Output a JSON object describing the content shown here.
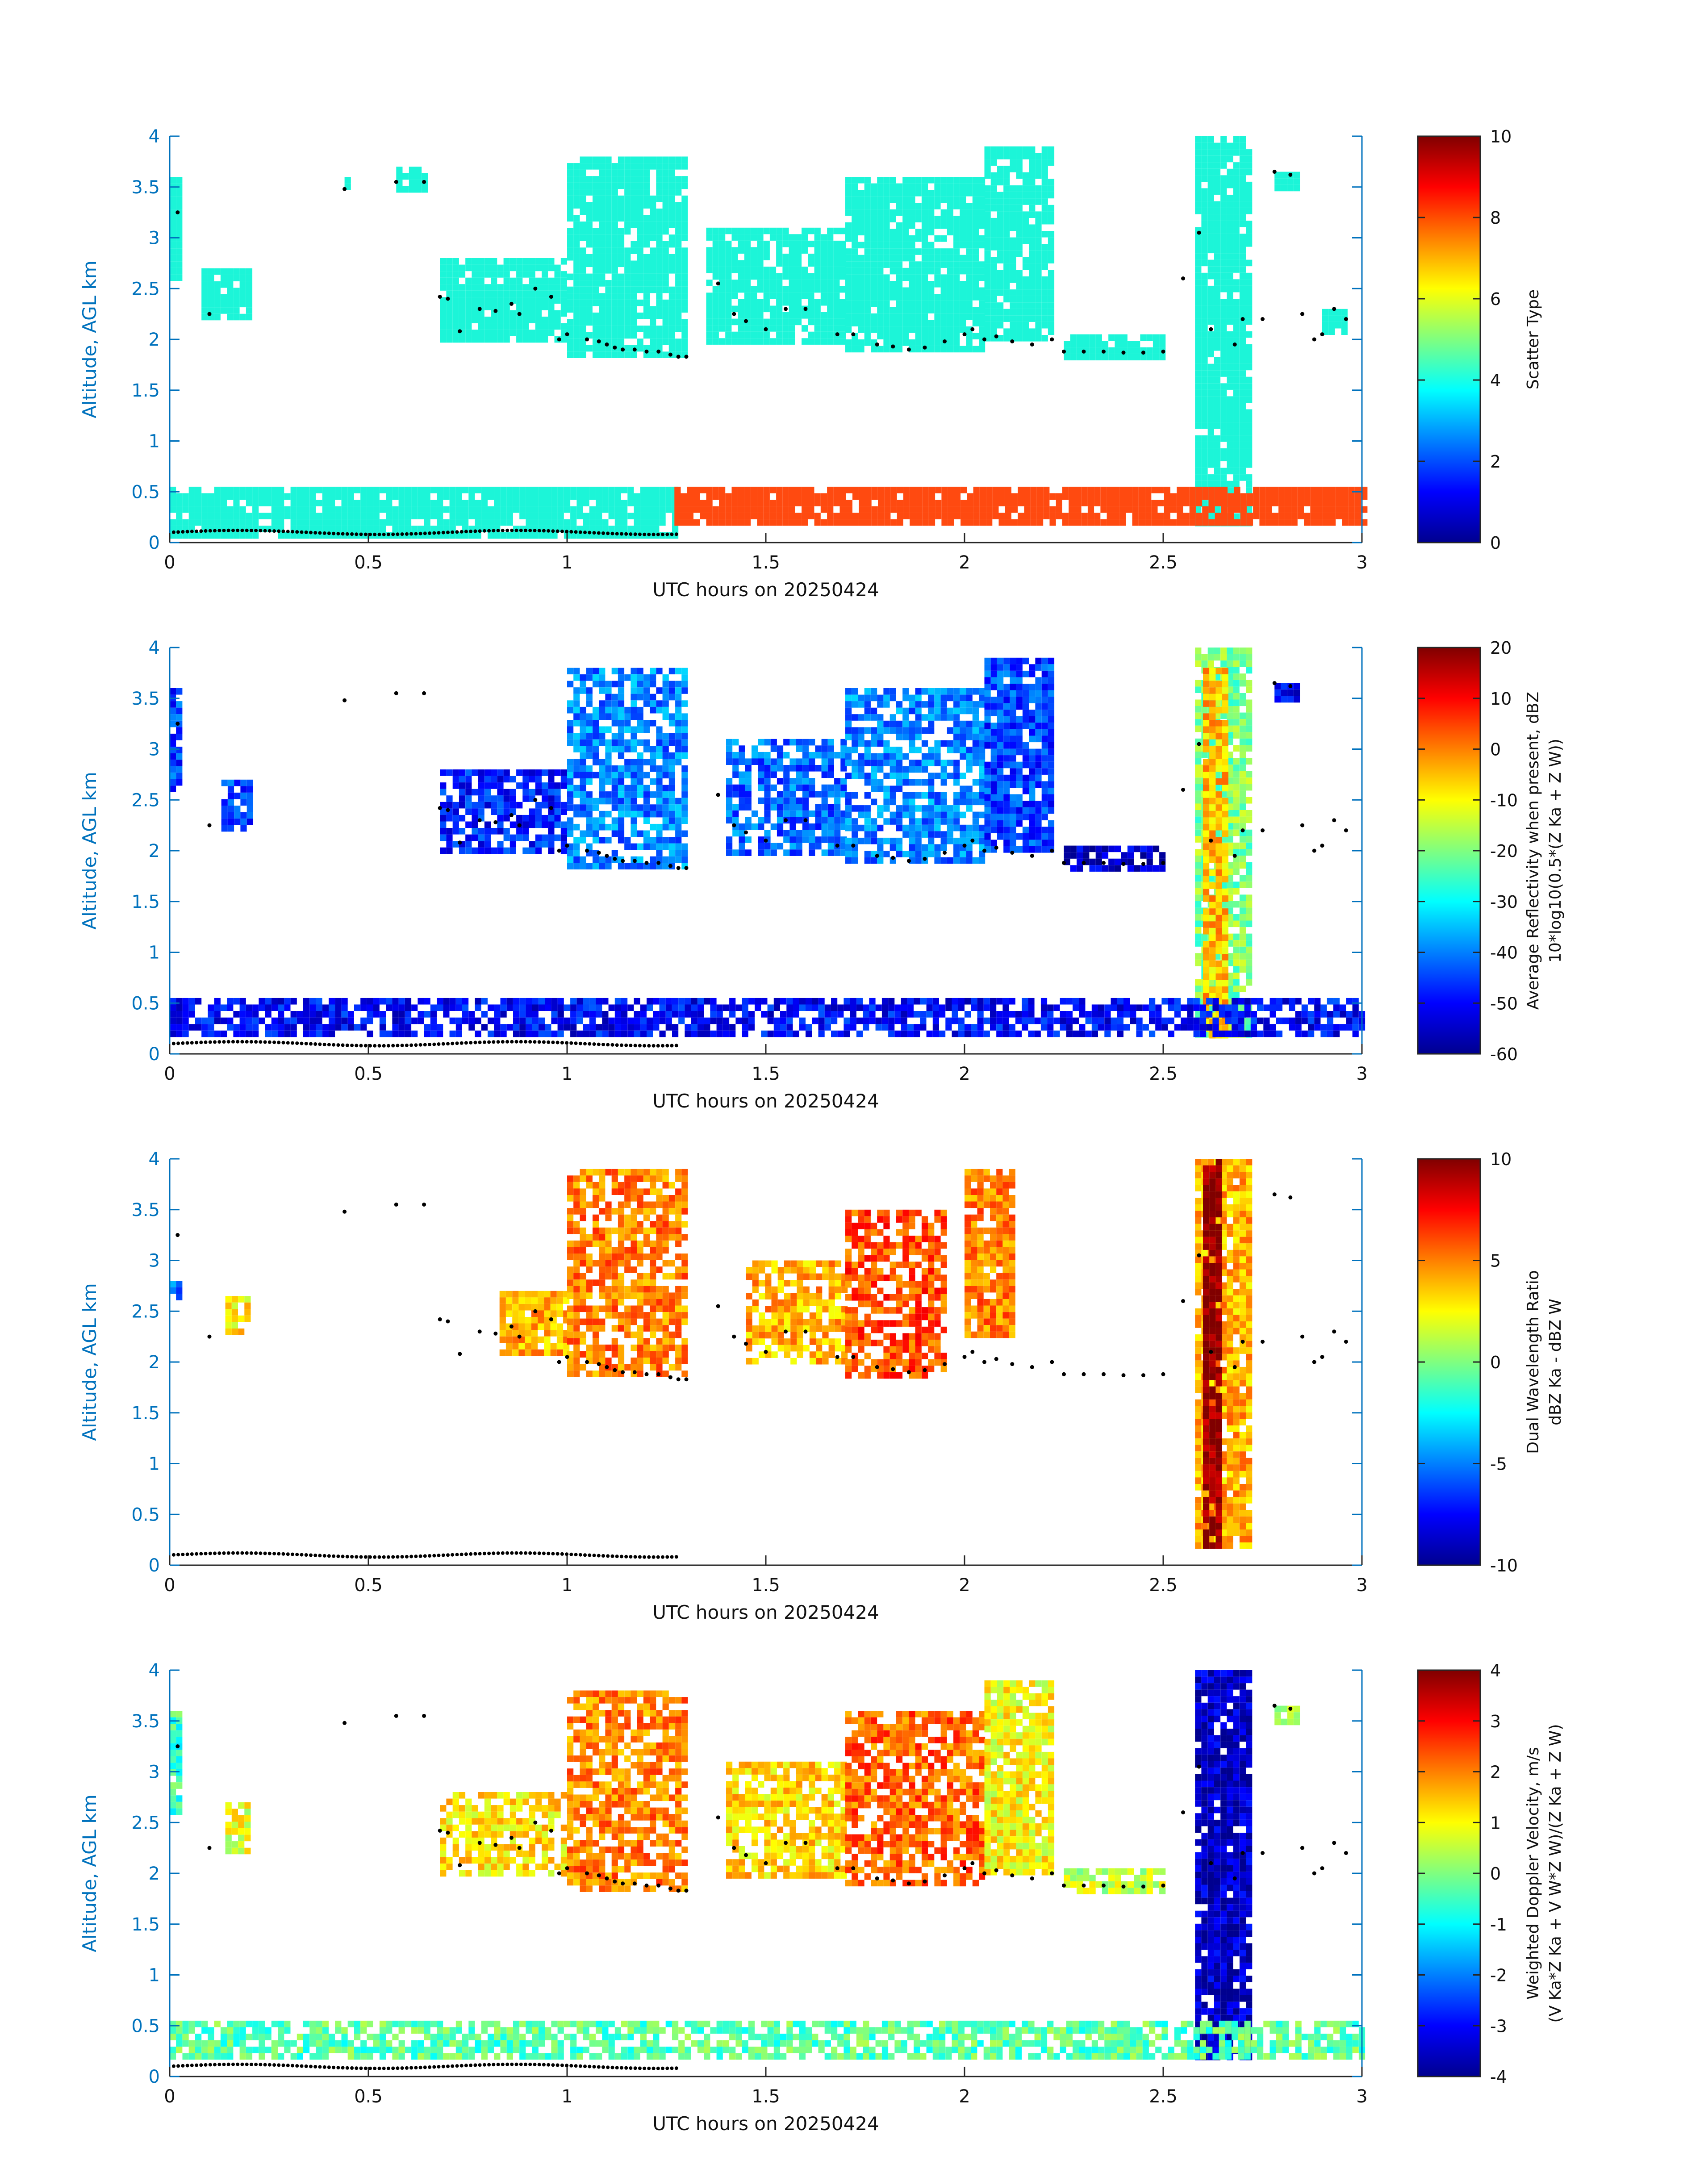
{
  "figure": {
    "panels": [
      {
        "id": "scatter-type",
        "ylabel": "Altitude, AGL km",
        "xlabel": "UTC hours on 20250424",
        "colorbar": {
          "label_line1": "Scatter Type",
          "label_line2": "",
          "ticks": [
            "0",
            "2",
            "4",
            "6",
            "8",
            "10"
          ],
          "range": [
            0,
            10
          ]
        }
      },
      {
        "id": "reflectivity",
        "ylabel": "Altitude, AGL km",
        "xlabel": "UTC hours on 20250424",
        "colorbar": {
          "label_line1": "Average Reflectivity when present, dBZ",
          "label_line2": "10*log10(0.5*(Z Ka + Z W))",
          "ticks": [
            "-60",
            "-50",
            "-40",
            "-30",
            "-20",
            "-10",
            "0",
            "10",
            "20"
          ],
          "range": [
            -60,
            20
          ]
        }
      },
      {
        "id": "dwr",
        "ylabel": "Altitude, AGL km",
        "xlabel": "UTC hours on 20250424",
        "colorbar": {
          "label_line1": "Dual Wavelength Ratio",
          "label_line2": "dBZ Ka - dBZ W",
          "ticks": [
            "-10",
            "-5",
            "0",
            "5",
            "10"
          ],
          "range": [
            -10,
            10
          ]
        }
      },
      {
        "id": "doppler",
        "ylabel": "Altitude, AGL km",
        "xlabel": "UTC hours on 20250424",
        "colorbar": {
          "label_line1": "Weighted Doppler Velocity, m/s",
          "label_line2": "(V Ka*Z Ka + V W*Z W)/(Z Ka + Z W)",
          "ticks": [
            "-4",
            "-3",
            "-2",
            "-1",
            "0",
            "1",
            "2",
            "3",
            "4"
          ],
          "range": [
            -4,
            4
          ]
        }
      }
    ],
    "colors": {
      "axis_blue": "#0072BD",
      "cyan_scatter": "#1CF5D8",
      "orange_scatter": "#FF4A10",
      "dot": "#000000"
    }
  },
  "chart_data": [
    {
      "type": "heatmap",
      "title": "",
      "xlabel": "UTC hours on 20250424",
      "ylabel": "Altitude, AGL km",
      "xlim": [
        0,
        3
      ],
      "ylim": [
        0,
        4
      ],
      "xticks": [
        "0",
        "0.5",
        "1",
        "1.5",
        "2",
        "2.5",
        "3"
      ],
      "yticks": [
        "0",
        "0.5",
        "1",
        "1.5",
        "2",
        "2.5",
        "3",
        "3.5",
        "4"
      ],
      "colorbar_label": "Scatter Type",
      "clim": [
        0,
        10
      ],
      "regions": [
        {
          "x": [
            0.0,
            0.02
          ],
          "y": [
            2.6,
            3.6
          ],
          "value": 4
        },
        {
          "x": [
            0.08,
            0.2
          ],
          "y": [
            2.25,
            2.7
          ],
          "value": 4
        },
        {
          "x": [
            0.44,
            0.45
          ],
          "y": [
            3.5,
            3.6
          ],
          "value": 4
        },
        {
          "x": [
            0.57,
            0.65
          ],
          "y": [
            3.5,
            3.7
          ],
          "value": 4
        },
        {
          "x": [
            0.68,
            1.0
          ],
          "y": [
            2.0,
            2.8
          ],
          "value": 4
        },
        {
          "x": [
            1.0,
            1.3
          ],
          "y": [
            1.85,
            3.8
          ],
          "value": 4
        },
        {
          "x": [
            1.35,
            1.7
          ],
          "y": [
            2.0,
            3.1
          ],
          "value": 4
        },
        {
          "x": [
            1.7,
            2.05
          ],
          "y": [
            1.9,
            3.6
          ],
          "value": 4
        },
        {
          "x": [
            2.05,
            2.22
          ],
          "y": [
            2.0,
            3.9
          ],
          "value": 4
        },
        {
          "x": [
            2.25,
            2.5
          ],
          "y": [
            1.85,
            2.05
          ],
          "value": 4
        },
        {
          "x": [
            2.58,
            2.72
          ],
          "y": [
            0.2,
            4.0
          ],
          "value": 4
        },
        {
          "x": [
            2.78,
            2.84
          ],
          "y": [
            3.5,
            3.65
          ],
          "value": 4
        },
        {
          "x": [
            2.9,
            2.96
          ],
          "y": [
            2.1,
            2.3
          ],
          "value": 4
        },
        {
          "x": [
            0.0,
            1.27
          ],
          "y": [
            0.08,
            0.55
          ],
          "value": 4
        },
        {
          "x": [
            1.27,
            3.0
          ],
          "y": [
            0.2,
            0.55
          ],
          "value": 9
        }
      ],
      "dots": "cloud base estimates along lower boundary"
    },
    {
      "type": "heatmap",
      "title": "",
      "xlabel": "UTC hours on 20250424",
      "ylabel": "Altitude, AGL km",
      "xlim": [
        0,
        3
      ],
      "ylim": [
        0,
        4
      ],
      "xticks": [
        "0",
        "0.5",
        "1",
        "1.5",
        "2",
        "2.5",
        "3"
      ],
      "yticks": [
        "0",
        "0.5",
        "1",
        "1.5",
        "2",
        "2.5",
        "3",
        "3.5",
        "4"
      ],
      "colorbar_label": "Average Reflectivity when present, dBZ",
      "clim": [
        -60,
        20
      ],
      "regions": [
        {
          "x": [
            0.0,
            0.02
          ],
          "y": [
            2.6,
            3.6
          ],
          "value": -45
        },
        {
          "x": [
            0.13,
            0.2
          ],
          "y": [
            2.25,
            2.7
          ],
          "value": -45
        },
        {
          "x": [
            0.68,
            1.0
          ],
          "y": [
            2.0,
            2.8
          ],
          "value": -48
        },
        {
          "x": [
            1.0,
            1.3
          ],
          "y": [
            1.85,
            3.8
          ],
          "value": -40
        },
        {
          "x": [
            1.4,
            1.7
          ],
          "y": [
            2.0,
            3.1
          ],
          "value": -42
        },
        {
          "x": [
            1.7,
            2.05
          ],
          "y": [
            1.9,
            3.6
          ],
          "value": -40
        },
        {
          "x": [
            2.05,
            2.22
          ],
          "y": [
            2.0,
            3.9
          ],
          "value": -45
        },
        {
          "x": [
            2.25,
            2.5
          ],
          "y": [
            1.85,
            2.05
          ],
          "value": -55
        },
        {
          "x": [
            2.58,
            2.72
          ],
          "y": [
            0.2,
            4.0
          ],
          "value": -20
        },
        {
          "x": [
            2.6,
            2.65
          ],
          "y": [
            0.2,
            3.8
          ],
          "value": -5
        },
        {
          "x": [
            2.78,
            2.84
          ],
          "y": [
            3.5,
            3.65
          ],
          "value": -50
        },
        {
          "x": [
            0.0,
            3.0
          ],
          "y": [
            0.2,
            0.55
          ],
          "value": -50
        }
      ]
    },
    {
      "type": "heatmap",
      "title": "",
      "xlabel": "UTC hours on 20250424",
      "ylabel": "Altitude, AGL km",
      "xlim": [
        0,
        3
      ],
      "ylim": [
        0,
        4
      ],
      "xticks": [
        "0",
        "0.5",
        "1",
        "1.5",
        "2",
        "2.5",
        "3"
      ],
      "yticks": [
        "0",
        "0.5",
        "1",
        "1.5",
        "2",
        "2.5",
        "3",
        "3.5",
        "4"
      ],
      "colorbar_label": "Dual Wavelength Ratio",
      "clim": [
        -10,
        10
      ],
      "regions": [
        {
          "x": [
            0.0,
            0.02
          ],
          "y": [
            2.65,
            2.8
          ],
          "value": -5
        },
        {
          "x": [
            0.14,
            0.2
          ],
          "y": [
            2.3,
            2.65
          ],
          "value": 3
        },
        {
          "x": [
            0.83,
            1.0
          ],
          "y": [
            2.1,
            2.7
          ],
          "value": 4
        },
        {
          "x": [
            1.0,
            1.3
          ],
          "y": [
            1.9,
            3.9
          ],
          "value": 5
        },
        {
          "x": [
            1.45,
            1.7
          ],
          "y": [
            2.0,
            3.0
          ],
          "value": 4
        },
        {
          "x": [
            1.7,
            1.95
          ],
          "y": [
            1.9,
            3.5
          ],
          "value": 6
        },
        {
          "x": [
            2.0,
            2.12
          ],
          "y": [
            2.3,
            3.9
          ],
          "value": 5
        },
        {
          "x": [
            2.58,
            2.72
          ],
          "y": [
            0.2,
            4.0
          ],
          "value": 4
        },
        {
          "x": [
            2.6,
            2.64
          ],
          "y": [
            0.2,
            4.0
          ],
          "value": 10
        }
      ]
    },
    {
      "type": "heatmap",
      "title": "",
      "xlabel": "UTC hours on 20250424",
      "ylabel": "Altitude, AGL km",
      "xlim": [
        0,
        3
      ],
      "ylim": [
        0,
        4
      ],
      "xticks": [
        "0",
        "0.5",
        "1",
        "1.5",
        "2",
        "2.5",
        "3"
      ],
      "yticks": [
        "0",
        "0.5",
        "1",
        "1.5",
        "2",
        "2.5",
        "3",
        "3.5",
        "4"
      ],
      "colorbar_label": "Weighted Doppler Velocity, m/s",
      "clim": [
        -4,
        4
      ],
      "regions": [
        {
          "x": [
            0.0,
            0.02
          ],
          "y": [
            2.6,
            3.6
          ],
          "value": -0.5
        },
        {
          "x": [
            0.14,
            0.2
          ],
          "y": [
            2.25,
            2.7
          ],
          "value": 0.8
        },
        {
          "x": [
            0.68,
            1.0
          ],
          "y": [
            2.0,
            2.8
          ],
          "value": 1.2
        },
        {
          "x": [
            1.0,
            1.3
          ],
          "y": [
            1.85,
            3.8
          ],
          "value": 2.0
        },
        {
          "x": [
            1.4,
            1.7
          ],
          "y": [
            2.0,
            3.1
          ],
          "value": 1.3
        },
        {
          "x": [
            1.7,
            2.05
          ],
          "y": [
            1.9,
            3.6
          ],
          "value": 2.2
        },
        {
          "x": [
            2.05,
            2.22
          ],
          "y": [
            2.0,
            3.9
          ],
          "value": 1.0
        },
        {
          "x": [
            2.25,
            2.5
          ],
          "y": [
            1.85,
            2.05
          ],
          "value": 0.5
        },
        {
          "x": [
            2.58,
            2.72
          ],
          "y": [
            0.2,
            4.0
          ],
          "value": -3.5
        },
        {
          "x": [
            2.78,
            2.84
          ],
          "y": [
            3.5,
            3.65
          ],
          "value": 0.5
        },
        {
          "x": [
            0.0,
            3.0
          ],
          "y": [
            0.2,
            0.55
          ],
          "value": -0.3
        }
      ]
    }
  ]
}
